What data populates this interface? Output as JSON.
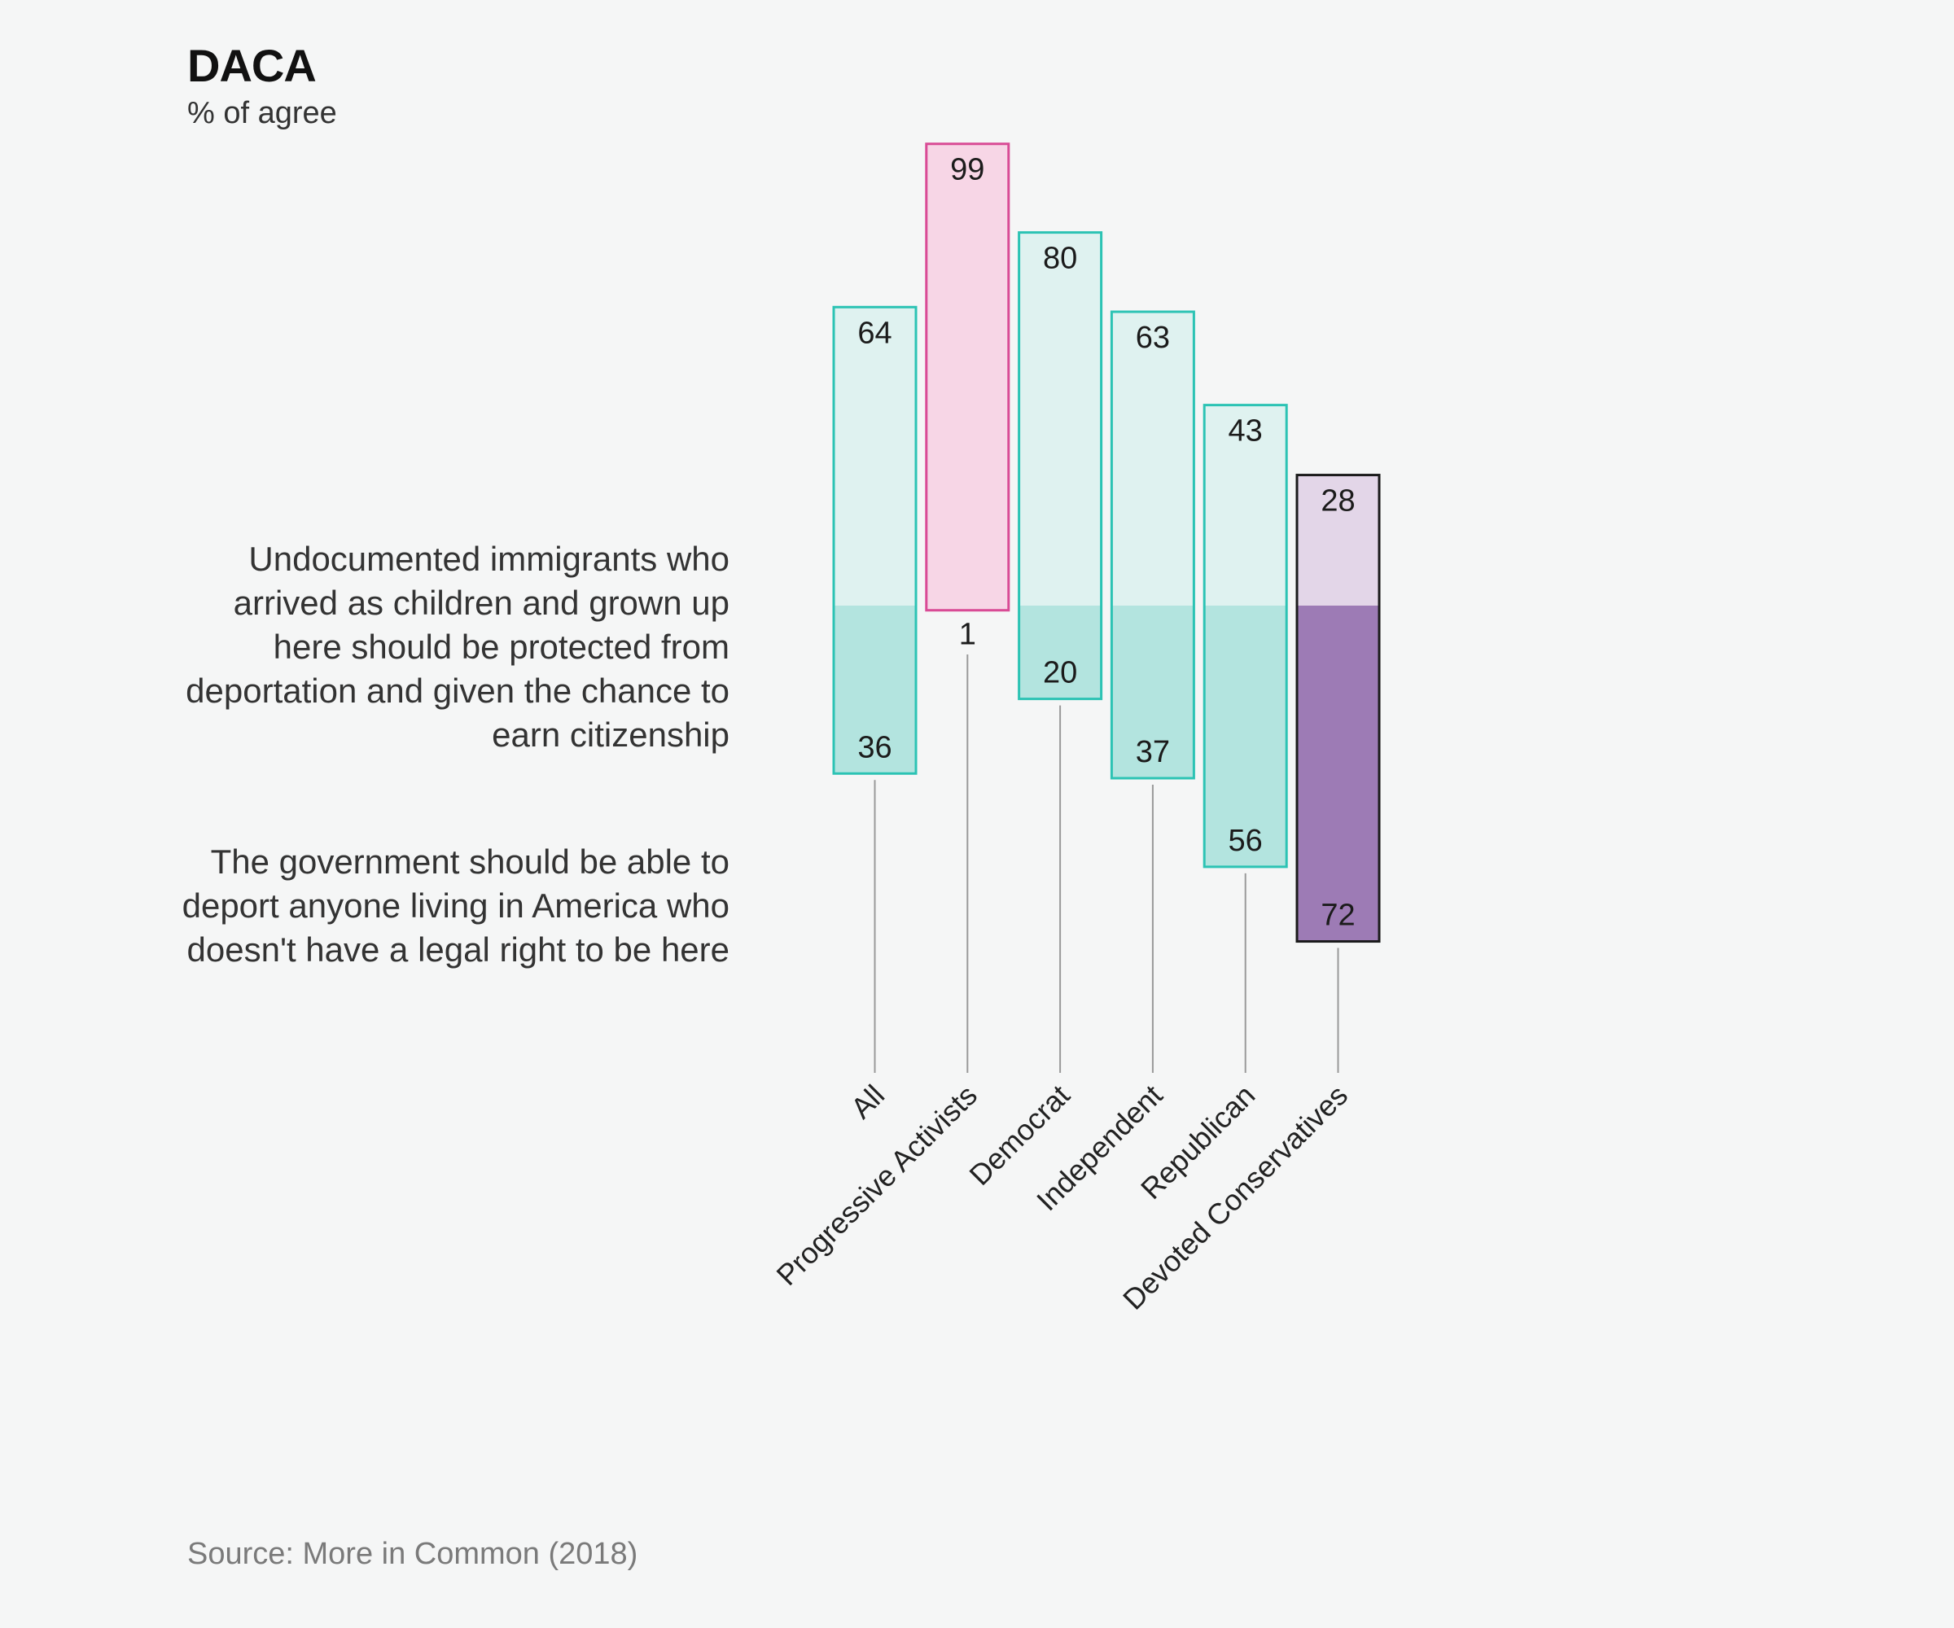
{
  "header": {
    "title": "DACA",
    "subtitle": "% of agree"
  },
  "statements": {
    "agree": "Undocumented immigrants who arrived as children and grown up here should be protected from deportation and given the chance to earn citizenship",
    "disagree": "The government should be able to deport anyone living in America who doesn't have a legal right to be here"
  },
  "footer": {
    "source": "Source: More in Common (2018)"
  },
  "chart_data": {
    "type": "bar",
    "title": "DACA",
    "subtitle": "% of agree",
    "categories": [
      "All",
      "Progressive Activists",
      "Democrat",
      "Independent",
      "Republican",
      "Devoted Conservatives"
    ],
    "series": [
      {
        "name": "Undocumented immigrants who arrived as children and grown up here should be protected from deportation and given the chance to earn citizenship",
        "values": [
          64,
          99,
          80,
          63,
          43,
          28
        ]
      },
      {
        "name": "The government should be able to deport anyone living in America who doesn't have a legal right to be here",
        "values": [
          36,
          1,
          20,
          37,
          56,
          72
        ]
      }
    ],
    "ylim": [
      0,
      100
    ],
    "xlabel": "",
    "ylabel": "% of agree",
    "colors": {
      "default_border": "#2cc3b4",
      "default_agree": "#dff2f0",
      "default_disagree": "#b3e4df",
      "progressive_border": "#d94b95",
      "progressive_agree": "#f7d6e6",
      "conservative_border": "#1b1b1b",
      "conservative_agree": "#e3d6e8",
      "conservative_disagree": "#9d7bb5",
      "stem": "#999999",
      "text": "#1b1b1b"
    }
  }
}
